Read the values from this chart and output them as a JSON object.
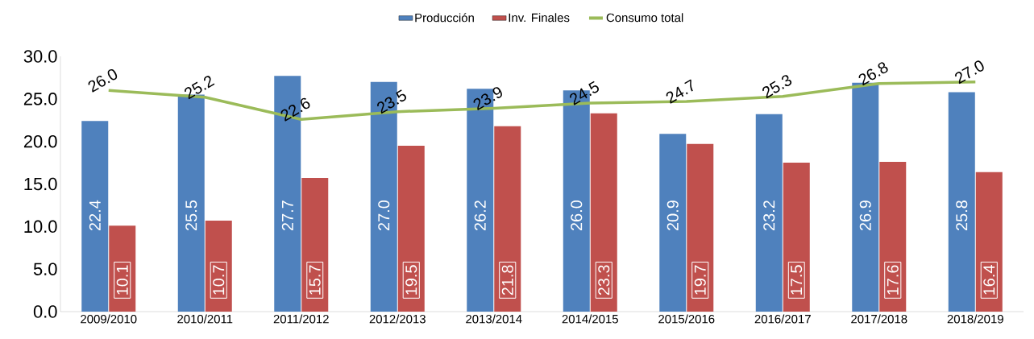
{
  "chart_data": {
    "type": "bar",
    "categories": [
      "2009/2010",
      "2010/2011",
      "2011/2012",
      "2012/2013",
      "2013/2014",
      "2014/2015",
      "2015/2016",
      "2016/2017",
      "2017/2018",
      "2018/2019"
    ],
    "series": [
      {
        "name": "Producción",
        "type": "bar",
        "color": "#4f81bd",
        "values": [
          22.4,
          25.5,
          27.7,
          27.0,
          26.2,
          26.0,
          20.9,
          23.2,
          26.9,
          25.8
        ],
        "value_labels": [
          "22.4",
          "25.5",
          "27.7",
          "27.0",
          "26.2",
          "26.0",
          "20.9",
          "23.2",
          "26.9",
          "25.8"
        ]
      },
      {
        "name": "Inv. Finales",
        "type": "bar",
        "color": "#c0504d",
        "values": [
          10.1,
          10.7,
          15.7,
          19.5,
          21.8,
          23.3,
          19.7,
          17.5,
          17.6,
          16.4
        ],
        "value_labels": [
          "10.1",
          "10.7",
          "15.7",
          "19.5",
          "21.8",
          "23.3",
          "19.7",
          "17.5",
          "17.6",
          "16.4"
        ]
      },
      {
        "name": "Consumo total",
        "type": "line",
        "color": "#9bbb59",
        "values": [
          26.0,
          25.2,
          22.6,
          23.5,
          23.9,
          24.5,
          24.7,
          25.3,
          26.8,
          27.0
        ],
        "value_labels": [
          "26.0",
          "25.2",
          "22.6",
          "23.5",
          "23.9",
          "24.5",
          "24.7",
          "25.3",
          "26.8",
          "27.0"
        ]
      }
    ],
    "ylim": [
      0,
      30
    ],
    "yticks": [
      {
        "value": 0,
        "label": "0.0"
      },
      {
        "value": 5,
        "label": "5.0"
      },
      {
        "value": 10,
        "label": "10.0"
      },
      {
        "value": 15,
        "label": "15.0"
      },
      {
        "value": 20,
        "label": "20.0"
      },
      {
        "value": 25,
        "label": "25.0"
      },
      {
        "value": 30,
        "label": "30.0"
      }
    ],
    "legend": "top"
  }
}
